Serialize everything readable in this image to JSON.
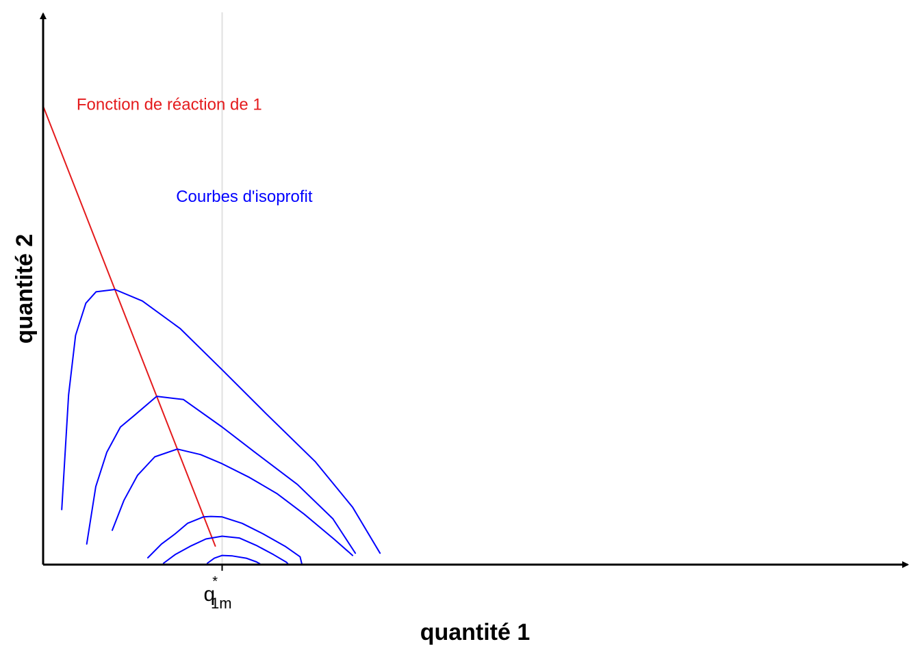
{
  "chart_data": {
    "type": "line",
    "title": "",
    "xlabel": "quantité 1",
    "ylabel": "quantité 2",
    "xlim": [
      0,
      1
    ],
    "ylim": [
      0,
      1
    ],
    "grid": false,
    "x_ticks": [
      {
        "value": 0.2087,
        "base": "q",
        "sup": "*",
        "sub": "1m"
      }
    ],
    "annotations": [
      {
        "text": "Fonction de réaction de 1",
        "x": 0.039,
        "y": 0.992,
        "color": "#e41a1c"
      },
      {
        "text": "Courbes d'isoprofit",
        "x": 0.155,
        "y": 0.791,
        "color": "#0000ff"
      }
    ],
    "series": [
      {
        "kind": "reaction",
        "color": "#e41a1c",
        "points": [
          [
            0.0,
            1.0
          ],
          [
            0.2007,
            0.0405
          ]
        ]
      },
      {
        "kind": "isoprofit",
        "color": "#0000ff",
        "points": [
          [
            0.0217,
            0.12
          ],
          [
            0.0297,
            0.37
          ],
          [
            0.0378,
            0.5
          ],
          [
            0.0498,
            0.57
          ],
          [
            0.0617,
            0.595
          ],
          [
            0.0837,
            0.6
          ],
          [
            0.1157,
            0.575
          ],
          [
            0.1596,
            0.515
          ],
          [
            0.2087,
            0.425
          ],
          [
            0.2595,
            0.33
          ],
          [
            0.3171,
            0.225
          ],
          [
            0.3609,
            0.125
          ],
          [
            0.3928,
            0.025
          ]
        ]
      },
      {
        "kind": "isoprofit",
        "color": "#0000ff",
        "points": [
          [
            0.0508,
            0.045
          ],
          [
            0.0614,
            0.17
          ],
          [
            0.0742,
            0.245
          ],
          [
            0.0901,
            0.3
          ],
          [
            0.1061,
            0.325
          ],
          [
            0.1324,
            0.367
          ],
          [
            0.1636,
            0.36
          ],
          [
            0.2087,
            0.3
          ],
          [
            0.247,
            0.245
          ],
          [
            0.2964,
            0.175
          ],
          [
            0.3378,
            0.1
          ],
          [
            0.364,
            0.025
          ]
        ]
      },
      {
        "kind": "isoprofit",
        "color": "#0000ff",
        "points": [
          [
            0.0806,
            0.075
          ],
          [
            0.0942,
            0.14
          ],
          [
            0.1101,
            0.195
          ],
          [
            0.1302,
            0.235
          ],
          [
            0.1564,
            0.252
          ],
          [
            0.1835,
            0.24
          ],
          [
            0.2087,
            0.22
          ],
          [
            0.2406,
            0.19
          ],
          [
            0.2725,
            0.155
          ],
          [
            0.3044,
            0.11
          ],
          [
            0.3395,
            0.055
          ],
          [
            0.3608,
            0.02
          ]
        ]
      },
      {
        "kind": "isoprofit",
        "color": "#0000ff",
        "points": [
          [
            0.1221,
            0.015
          ],
          [
            0.138,
            0.045
          ],
          [
            0.1539,
            0.067
          ],
          [
            0.1683,
            0.09
          ],
          [
            0.1868,
            0.104
          ],
          [
            0.1955,
            0.105
          ],
          [
            0.2087,
            0.104
          ],
          [
            0.232,
            0.09
          ],
          [
            0.2565,
            0.067
          ],
          [
            0.2821,
            0.04
          ],
          [
            0.2996,
            0.017
          ],
          [
            0.3018,
            0.0
          ]
        ]
      },
      {
        "kind": "isoprofit",
        "color": "#0000ff",
        "points": [
          [
            0.1404,
            0.003
          ],
          [
            0.154,
            0.022
          ],
          [
            0.1715,
            0.04
          ],
          [
            0.1899,
            0.056
          ],
          [
            0.2087,
            0.062
          ],
          [
            0.2287,
            0.058
          ],
          [
            0.2485,
            0.042
          ],
          [
            0.2685,
            0.022
          ],
          [
            0.2838,
            0.005
          ],
          [
            0.2862,
            0.0
          ]
        ]
      },
      {
        "kind": "isoprofit",
        "color": "#0000ff",
        "points": [
          [
            0.1915,
            0.003
          ],
          [
            0.1997,
            0.014
          ],
          [
            0.2087,
            0.02
          ],
          [
            0.2207,
            0.019
          ],
          [
            0.2367,
            0.014
          ],
          [
            0.2487,
            0.006
          ],
          [
            0.2527,
            0.002
          ]
        ]
      }
    ]
  }
}
